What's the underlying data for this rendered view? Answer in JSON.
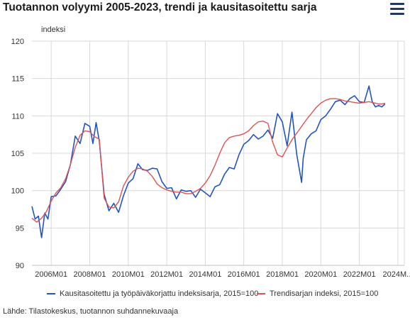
{
  "header": {
    "title": "Tuotannon volyymi 2005-2023, trendi ja kausitasoitettu sarja",
    "menu_icon": "hamburger-menu-icon"
  },
  "source": "Lähde: Tilastokeskus, tuotannon suhdannekuvaaja",
  "chart_data": {
    "type": "line",
    "title": "Tuotannon volyymi 2005-2023, trendi ja kausitasoitettu sarja",
    "ylabel": "indeksi",
    "xlabel": "",
    "ylim": [
      90,
      120
    ],
    "yticks": [
      90,
      95,
      100,
      105,
      110,
      115,
      120
    ],
    "xlim": [
      "2005M01",
      "2024M05"
    ],
    "xtick_labels": [
      "2006M01",
      "2008M01",
      "2010M01",
      "2012M01",
      "2014M01",
      "2016M01",
      "2018M01",
      "2020M01",
      "2022M01",
      "2024M..."
    ],
    "xtick_positions": [
      "2006M01",
      "2008M01",
      "2010M01",
      "2012M01",
      "2014M01",
      "2016M01",
      "2018M01",
      "2020M01",
      "2022M01",
      "2024M01"
    ],
    "grid": true,
    "legend_position": "bottom",
    "series": [
      {
        "name": "Kausitasoitettu ja työpäiväkorjattu indeksisarja, 2015=100",
        "color": "#2155c6",
        "points": [
          [
            "2005M01",
            97.9
          ],
          [
            "2005M03",
            96.2
          ],
          [
            "2005M05",
            96.6
          ],
          [
            "2005M07",
            93.7
          ],
          [
            "2005M09",
            97.0
          ],
          [
            "2005M11",
            96.2
          ],
          [
            "2006M01",
            99.2
          ],
          [
            "2006M04",
            99.3
          ],
          [
            "2006M07",
            100.2
          ],
          [
            "2006M10",
            101.2
          ],
          [
            "2007M01",
            103.5
          ],
          [
            "2007M04",
            107.3
          ],
          [
            "2007M07",
            106.3
          ],
          [
            "2007M10",
            109.0
          ],
          [
            "2008M01",
            108.6
          ],
          [
            "2008M03",
            106.3
          ],
          [
            "2008M05",
            109.1
          ],
          [
            "2008M07",
            106.6
          ],
          [
            "2008M10",
            99.5
          ],
          [
            "2009M01",
            97.3
          ],
          [
            "2009M04",
            98.3
          ],
          [
            "2009M07",
            97.1
          ],
          [
            "2009M10",
            99.3
          ],
          [
            "2010M01",
            101.0
          ],
          [
            "2010M04",
            101.6
          ],
          [
            "2010M07",
            103.6
          ],
          [
            "2010M10",
            102.8
          ],
          [
            "2011M01",
            102.7
          ],
          [
            "2011M04",
            103.0
          ],
          [
            "2011M07",
            102.9
          ],
          [
            "2011M10",
            101.2
          ],
          [
            "2012M01",
            100.3
          ],
          [
            "2012M04",
            100.4
          ],
          [
            "2012M07",
            98.9
          ],
          [
            "2012M10",
            100.1
          ],
          [
            "2013M01",
            99.9
          ],
          [
            "2013M04",
            100.0
          ],
          [
            "2013M07",
            99.1
          ],
          [
            "2013M10",
            100.2
          ],
          [
            "2014M01",
            99.7
          ],
          [
            "2014M04",
            99.2
          ],
          [
            "2014M07",
            100.5
          ],
          [
            "2014M10",
            100.8
          ],
          [
            "2015M01",
            102.2
          ],
          [
            "2015M04",
            103.1
          ],
          [
            "2015M07",
            102.9
          ],
          [
            "2015M10",
            104.8
          ],
          [
            "2016M01",
            106.2
          ],
          [
            "2016M04",
            106.7
          ],
          [
            "2016M07",
            107.5
          ],
          [
            "2016M10",
            106.9
          ],
          [
            "2017M01",
            107.3
          ],
          [
            "2017M04",
            108.1
          ],
          [
            "2017M07",
            107.0
          ],
          [
            "2017M10",
            110.3
          ],
          [
            "2018M01",
            109.2
          ],
          [
            "2018M04",
            106.0
          ],
          [
            "2018M07",
            110.5
          ],
          [
            "2018M10",
            104.8
          ],
          [
            "2019M01",
            101.1
          ],
          [
            "2019M02",
            104.3
          ],
          [
            "2019M04",
            106.8
          ],
          [
            "2019M07",
            107.6
          ],
          [
            "2019M10",
            108.0
          ],
          [
            "2020M01",
            109.5
          ],
          [
            "2020M04",
            110.0
          ],
          [
            "2020M07",
            110.9
          ],
          [
            "2020M10",
            111.9
          ],
          [
            "2021M01",
            112.1
          ],
          [
            "2021M04",
            111.5
          ],
          [
            "2021M07",
            112.3
          ],
          [
            "2021M10",
            112.7
          ],
          [
            "2022M01",
            111.9
          ],
          [
            "2022M04",
            111.8
          ],
          [
            "2022M07",
            114.0
          ],
          [
            "2022M09",
            111.9
          ],
          [
            "2022M11",
            111.2
          ],
          [
            "2023M01",
            111.4
          ],
          [
            "2023M03",
            111.2
          ],
          [
            "2023M05",
            111.6
          ]
        ]
      },
      {
        "name": "Trendisarjan indeksi, 2015=100",
        "color": "#e05252",
        "points": [
          [
            "2005M01",
            96.3
          ],
          [
            "2005M04",
            95.8
          ],
          [
            "2005M07",
            96.3
          ],
          [
            "2005M10",
            97.2
          ],
          [
            "2006M01",
            98.6
          ],
          [
            "2006M04",
            99.7
          ],
          [
            "2006M07",
            100.4
          ],
          [
            "2006M10",
            101.6
          ],
          [
            "2007M01",
            103.5
          ],
          [
            "2007M04",
            105.8
          ],
          [
            "2007M07",
            107.4
          ],
          [
            "2007M10",
            108.0
          ],
          [
            "2008M01",
            107.9
          ],
          [
            "2008M04",
            107.2
          ],
          [
            "2008M07",
            106.9
          ],
          [
            "2008M10",
            99.0
          ],
          [
            "2009M01",
            97.8
          ],
          [
            "2009M04",
            97.7
          ],
          [
            "2009M07",
            98.5
          ],
          [
            "2009M10",
            100.6
          ],
          [
            "2010M01",
            101.8
          ],
          [
            "2010M04",
            102.6
          ],
          [
            "2010M07",
            103.0
          ],
          [
            "2010M10",
            102.9
          ],
          [
            "2011M01",
            102.6
          ],
          [
            "2011M04",
            101.9
          ],
          [
            "2011M07",
            100.9
          ],
          [
            "2011M10",
            100.4
          ],
          [
            "2012M01",
            100.1
          ],
          [
            "2012M04",
            99.9
          ],
          [
            "2012M07",
            99.8
          ],
          [
            "2012M10",
            99.8
          ],
          [
            "2013M01",
            99.6
          ],
          [
            "2013M04",
            99.6
          ],
          [
            "2013M07",
            99.9
          ],
          [
            "2013M10",
            100.3
          ],
          [
            "2014M01",
            101.0
          ],
          [
            "2014M04",
            102.0
          ],
          [
            "2014M07",
            103.4
          ],
          [
            "2014M10",
            105.0
          ],
          [
            "2015M01",
            106.4
          ],
          [
            "2015M04",
            107.1
          ],
          [
            "2015M07",
            107.3
          ],
          [
            "2015M10",
            107.4
          ],
          [
            "2016M01",
            107.6
          ],
          [
            "2016M04",
            108.0
          ],
          [
            "2016M07",
            108.7
          ],
          [
            "2016M10",
            109.2
          ],
          [
            "2017M01",
            109.3
          ],
          [
            "2017M04",
            109.0
          ],
          [
            "2017M07",
            106.5
          ],
          [
            "2017M10",
            104.8
          ],
          [
            "2018M01",
            104.5
          ],
          [
            "2018M04",
            105.7
          ],
          [
            "2018M07",
            106.8
          ],
          [
            "2018M10",
            107.7
          ],
          [
            "2019M01",
            108.6
          ],
          [
            "2019M04",
            109.5
          ],
          [
            "2019M07",
            110.3
          ],
          [
            "2019M10",
            111.1
          ],
          [
            "2020M01",
            111.7
          ],
          [
            "2020M04",
            112.1
          ],
          [
            "2020M07",
            112.3
          ],
          [
            "2020M10",
            112.3
          ],
          [
            "2021M01",
            112.2
          ],
          [
            "2021M04",
            112.0
          ],
          [
            "2021M07",
            111.9
          ],
          [
            "2021M10",
            111.8
          ],
          [
            "2022M01",
            111.7
          ],
          [
            "2022M04",
            111.8
          ],
          [
            "2022M07",
            111.9
          ],
          [
            "2022M09",
            111.8
          ],
          [
            "2022M11",
            111.7
          ],
          [
            "2023M01",
            111.6
          ],
          [
            "2023M03",
            111.6
          ],
          [
            "2023M05",
            111.7
          ]
        ]
      }
    ]
  }
}
